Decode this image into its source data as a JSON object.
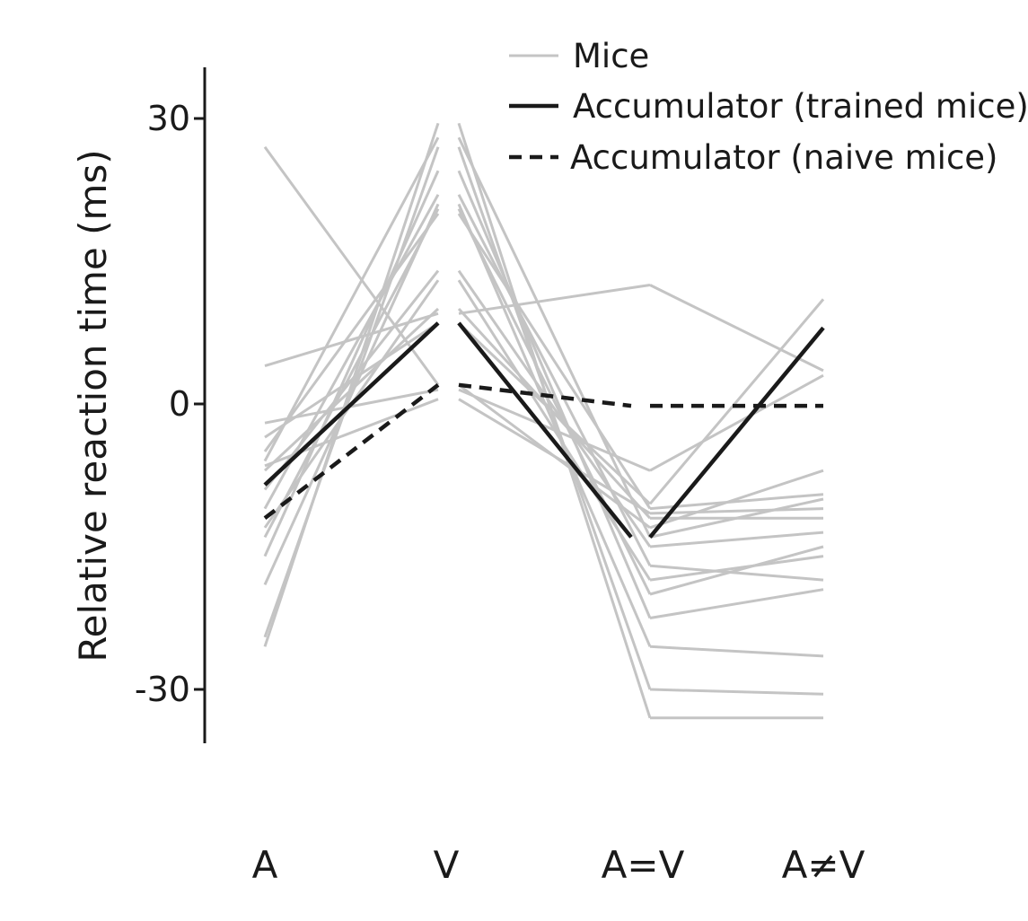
{
  "chart_data": {
    "type": "line",
    "title": "",
    "xlabel": "",
    "ylabel": "Relative reaction time (ms)",
    "ylim": [
      -35,
      35
    ],
    "y_ticks": [
      30,
      0,
      -30
    ],
    "y_tick_labels": [
      "30",
      "0",
      "-30"
    ],
    "categories": [
      "A",
      "V",
      "A=V",
      "A≠V"
    ],
    "grid": false,
    "legend_position": "top-right",
    "colors": {
      "mice": "#c4c4c4",
      "model": "#1a1a1a"
    },
    "legend": [
      {
        "label": "Mice",
        "style": "mice"
      },
      {
        "label": "Accumulator (trained mice)",
        "style": "solid"
      },
      {
        "label": "Accumulator (naive mice)",
        "style": "dashed"
      }
    ],
    "segments": [
      {
        "from": "A",
        "to": "V"
      },
      {
        "from": "A=V",
        "to": "A≠V"
      }
    ],
    "mice": [
      [
        -25.5,
        29.5,
        -33.0,
        -33.0
      ],
      [
        -24.5,
        27.0,
        -30.0,
        -30.5
      ],
      [
        -19.0,
        21.0,
        -25.5,
        -26.5
      ],
      [
        -16.0,
        24.5,
        -22.5,
        -19.5
      ],
      [
        -14.0,
        20.5,
        -20.0,
        -15.0
      ],
      [
        -13.0,
        13.0,
        -18.5,
        -16.0
      ],
      [
        -11.0,
        22.0,
        -17.0,
        -18.5
      ],
      [
        -9.0,
        14.0,
        -15.0,
        -13.5
      ],
      [
        -7.0,
        10.0,
        -12.0,
        -12.0
      ],
      [
        -6.5,
        0.5,
        -11.5,
        -11.0
      ],
      [
        -6.0,
        28.0,
        -14.0,
        -10.0
      ],
      [
        -5.0,
        20.0,
        -11.0,
        -9.5
      ],
      [
        -3.5,
        8.5,
        -10.5,
        11.0
      ],
      [
        -2.0,
        1.5,
        -7.0,
        3.0
      ],
      [
        4.0,
        9.5,
        12.5,
        3.5
      ],
      [
        27.0,
        2.0,
        -13.0,
        -7.0
      ]
    ],
    "series": [
      {
        "name": "Accumulator (trained mice)",
        "style": "solid",
        "values": [
          -8.5,
          8.5,
          -14.0,
          8.0
        ]
      },
      {
        "name": "Accumulator (naive mice)",
        "style": "dashed",
        "values": [
          -12.0,
          2.0,
          -0.2,
          -0.2
        ]
      }
    ]
  }
}
